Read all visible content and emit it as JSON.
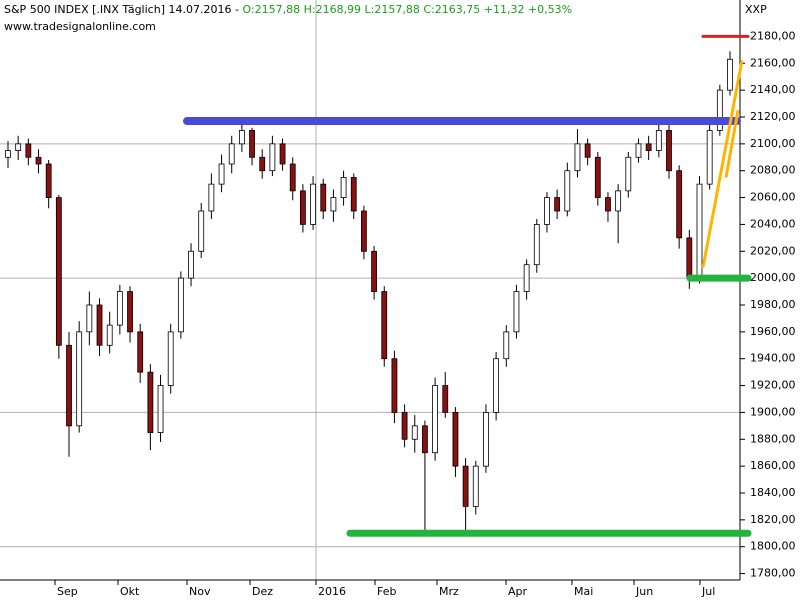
{
  "header": {
    "symbol": "S&P 500 INDEX [.INX  Täglich]",
    "date": "14.07.2016 -",
    "ohlc": "O:2157,88 H:2168,99 L:2157,88 C:2163,75 +11,32 +0,53%",
    "source": "www.tradesignalonline.com",
    "axis_label": "XXP"
  },
  "chart_data": {
    "type": "candlestick",
    "ylim": [
      1770,
      2190
    ],
    "yticks": [
      {
        "value": 1780,
        "label": "1780,00"
      },
      {
        "value": 1800,
        "label": "1800,00"
      },
      {
        "value": 1820,
        "label": "1820,00"
      },
      {
        "value": 1840,
        "label": "1840,00"
      },
      {
        "value": 1860,
        "label": "1860,00"
      },
      {
        "value": 1880,
        "label": "1880,00"
      },
      {
        "value": 1900,
        "label": "1900,00"
      },
      {
        "value": 1920,
        "label": "1920,00"
      },
      {
        "value": 1940,
        "label": "1940,00"
      },
      {
        "value": 1960,
        "label": "1960,00"
      },
      {
        "value": 1980,
        "label": "1980,00"
      },
      {
        "value": 2000,
        "label": "2000,00"
      },
      {
        "value": 2020,
        "label": "2020,00"
      },
      {
        "value": 2040,
        "label": "2040,00"
      },
      {
        "value": 2060,
        "label": "2060,00"
      },
      {
        "value": 2080,
        "label": "2080,00"
      },
      {
        "value": 2100,
        "label": "2100,00"
      },
      {
        "value": 2120,
        "label": "2120,00"
      },
      {
        "value": 2140,
        "label": "2140,00"
      },
      {
        "value": 2160,
        "label": "2160,00"
      },
      {
        "value": 2180,
        "label": "2180,00"
      }
    ],
    "xticks": [
      "Sep",
      "Okt",
      "Nov",
      "Dez",
      "2016",
      "Feb",
      "Mrz",
      "Apr",
      "Mai",
      "Jun",
      "Jul"
    ],
    "up_color": "#ffffff",
    "down_color": "#8b1010",
    "candles": [
      [
        2090,
        2102,
        2082,
        2095
      ],
      [
        2095,
        2106,
        2088,
        2100
      ],
      [
        2100,
        2104,
        2084,
        2090
      ],
      [
        2090,
        2096,
        2078,
        2085
      ],
      [
        2085,
        2088,
        2052,
        2060
      ],
      [
        2060,
        2062,
        1940,
        1950
      ],
      [
        1950,
        1960,
        1867,
        1890
      ],
      [
        1890,
        1968,
        1885,
        1960
      ],
      [
        1960,
        1990,
        1950,
        1980
      ],
      [
        1980,
        1985,
        1942,
        1950
      ],
      [
        1950,
        1975,
        1944,
        1965
      ],
      [
        1965,
        1995,
        1958,
        1990
      ],
      [
        1990,
        1994,
        1952,
        1960
      ],
      [
        1960,
        1966,
        1922,
        1930
      ],
      [
        1930,
        1936,
        1872,
        1885
      ],
      [
        1885,
        1928,
        1878,
        1920
      ],
      [
        1920,
        1966,
        1914,
        1960
      ],
      [
        1960,
        2005,
        1955,
        2000
      ],
      [
        2000,
        2026,
        1994,
        2020
      ],
      [
        2020,
        2056,
        2015,
        2050
      ],
      [
        2050,
        2078,
        2044,
        2070
      ],
      [
        2070,
        2092,
        2064,
        2085
      ],
      [
        2085,
        2106,
        2078,
        2100
      ],
      [
        2100,
        2116,
        2094,
        2110
      ],
      [
        2110,
        2112,
        2084,
        2090
      ],
      [
        2090,
        2096,
        2074,
        2080
      ],
      [
        2080,
        2106,
        2076,
        2100
      ],
      [
        2100,
        2104,
        2080,
        2085
      ],
      [
        2085,
        2090,
        2058,
        2065
      ],
      [
        2065,
        2070,
        2034,
        2040
      ],
      [
        2040,
        2076,
        2036,
        2070
      ],
      [
        2070,
        2074,
        2044,
        2050
      ],
      [
        2050,
        2066,
        2042,
        2060
      ],
      [
        2060,
        2080,
        2054,
        2075
      ],
      [
        2075,
        2078,
        2044,
        2050
      ],
      [
        2050,
        2054,
        2014,
        2020
      ],
      [
        2020,
        2024,
        1984,
        1990
      ],
      [
        1990,
        1994,
        1934,
        1940
      ],
      [
        1940,
        1946,
        1892,
        1900
      ],
      [
        1900,
        1906,
        1874,
        1880
      ],
      [
        1880,
        1898,
        1870,
        1890
      ],
      [
        1890,
        1894,
        1812,
        1870
      ],
      [
        1870,
        1926,
        1864,
        1920
      ],
      [
        1920,
        1930,
        1896,
        1900
      ],
      [
        1900,
        1904,
        1852,
        1860
      ],
      [
        1860,
        1866,
        1810,
        1830
      ],
      [
        1830,
        1864,
        1824,
        1860
      ],
      [
        1860,
        1906,
        1855,
        1900
      ],
      [
        1900,
        1945,
        1894,
        1940
      ],
      [
        1940,
        1965,
        1934,
        1960
      ],
      [
        1960,
        1995,
        1955,
        1990
      ],
      [
        1990,
        2014,
        1984,
        2010
      ],
      [
        2010,
        2044,
        2004,
        2040
      ],
      [
        2040,
        2064,
        2034,
        2060
      ],
      [
        2060,
        2066,
        2044,
        2050
      ],
      [
        2050,
        2086,
        2046,
        2080
      ],
      [
        2080,
        2111,
        2075,
        2100
      ],
      [
        2100,
        2104,
        2084,
        2090
      ],
      [
        2090,
        2094,
        2054,
        2060
      ],
      [
        2060,
        2064,
        2042,
        2050
      ],
      [
        2050,
        2070,
        2026,
        2065
      ],
      [
        2065,
        2094,
        2060,
        2090
      ],
      [
        2090,
        2104,
        2086,
        2100
      ],
      [
        2100,
        2106,
        2088,
        2095
      ],
      [
        2095,
        2116,
        2090,
        2110
      ],
      [
        2110,
        2114,
        2074,
        2080
      ],
      [
        2080,
        2084,
        2022,
        2030
      ],
      [
        2030,
        2036,
        1992,
        2000
      ],
      [
        2000,
        2076,
        1996,
        2070
      ],
      [
        2070,
        2114,
        2066,
        2110
      ],
      [
        2110,
        2144,
        2106,
        2140
      ],
      [
        2140,
        2169,
        2136,
        2163
      ]
    ],
    "levels": [
      {
        "value": 2117,
        "color": "#4a4ad8"
      },
      {
        "value": 2000,
        "color": "#22b43c"
      },
      {
        "value": 1810,
        "color": "#22b43c"
      },
      {
        "value": 2180,
        "color": "#e02020"
      }
    ],
    "trendlines": [
      {
        "values": [
          2008,
          2162
        ],
        "color": "#ffb400"
      },
      {
        "values": [
          2075,
          2125
        ],
        "color": "#ffb400"
      }
    ]
  }
}
